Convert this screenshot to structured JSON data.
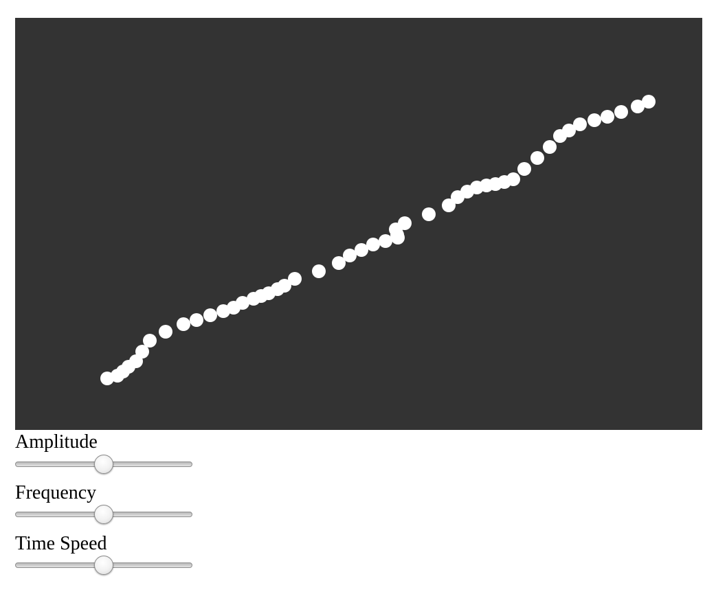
{
  "canvas": {
    "background": "#333333",
    "dot_color": "#ffffff"
  },
  "controls": {
    "amplitude": {
      "label": "Amplitude",
      "value": 0.5
    },
    "frequency": {
      "label": "Frequency",
      "value": 0.5
    },
    "time_speed": {
      "label": "Time Speed",
      "value": 0.5
    }
  },
  "chart_data": {
    "type": "scatter",
    "title": "",
    "xlabel": "",
    "ylabel": "",
    "xlim": [
      0,
      1000
    ],
    "ylim": [
      0,
      600
    ],
    "grid": false,
    "points": [
      [
        134,
        75
      ],
      [
        149,
        79
      ],
      [
        157,
        85
      ],
      [
        165,
        92
      ],
      [
        176,
        100
      ],
      [
        185,
        114
      ],
      [
        196,
        130
      ],
      [
        219,
        143
      ],
      [
        245,
        154
      ],
      [
        264,
        160
      ],
      [
        284,
        167
      ],
      [
        303,
        173
      ],
      [
        318,
        178
      ],
      [
        331,
        185
      ],
      [
        347,
        191
      ],
      [
        358,
        195
      ],
      [
        369,
        199
      ],
      [
        382,
        205
      ],
      [
        392,
        210
      ],
      [
        407,
        220
      ],
      [
        442,
        231
      ],
      [
        471,
        243
      ],
      [
        487,
        254
      ],
      [
        504,
        262
      ],
      [
        521,
        270
      ],
      [
        539,
        275
      ],
      [
        557,
        280
      ],
      [
        556,
        284
      ],
      [
        554,
        292
      ],
      [
        567,
        301
      ],
      [
        602,
        314
      ],
      [
        631,
        327
      ],
      [
        644,
        339
      ],
      [
        658,
        347
      ],
      [
        672,
        353
      ],
      [
        686,
        356
      ],
      [
        699,
        358
      ],
      [
        712,
        361
      ],
      [
        725,
        365
      ],
      [
        741,
        380
      ],
      [
        760,
        396
      ],
      [
        778,
        412
      ],
      [
        793,
        428
      ],
      [
        806,
        436
      ],
      [
        822,
        445
      ],
      [
        843,
        451
      ],
      [
        862,
        456
      ],
      [
        882,
        463
      ],
      [
        906,
        471
      ],
      [
        922,
        478
      ]
    ]
  }
}
